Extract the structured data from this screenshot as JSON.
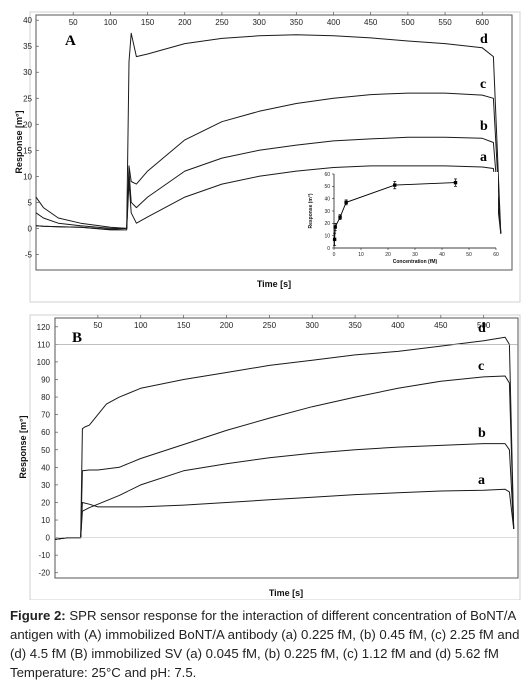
{
  "caption": {
    "lead": "Figure 2:",
    "text": " SPR sensor response for the interaction of different concentration of BoNT/A antigen with (A) immobilized BoNT/A antibody (a) 0.225 fM, (b) 0.45 fM, (c)  2.25 fM and (d)  4.5 fM (B) immobilized SV (a) 0.045 fM, (b) 0.225 fM, (c) 1.12 fM and (d) 5.62 fM  Temperature: 25°C and pH: 7.5."
  },
  "chart_data": [
    {
      "type": "line",
      "panel_label": "A",
      "xlabel": "Time [s]",
      "ylabel": "Response [m°]",
      "xlim": [
        0,
        640
      ],
      "ylim": [
        -8,
        41
      ],
      "xticks": [
        50,
        100,
        150,
        200,
        250,
        300,
        350,
        400,
        450,
        500,
        550,
        600
      ],
      "yticks": [
        -5,
        0,
        5,
        10,
        15,
        20,
        25,
        30,
        35,
        40
      ],
      "series": [
        {
          "name": "a",
          "x": [
            0,
            10,
            30,
            60,
            100,
            122,
            125,
            128,
            135,
            150,
            200,
            250,
            300,
            350,
            400,
            450,
            500,
            550,
            600,
            615,
            625
          ],
          "y": [
            0.5,
            0.4,
            0.3,
            0.2,
            -0.3,
            -0.3,
            9,
            3,
            1,
            2.2,
            6,
            8.5,
            10,
            11,
            11.7,
            12,
            12,
            12,
            11.8,
            11.5,
            -1
          ]
        },
        {
          "name": "b",
          "x": [
            0,
            10,
            30,
            60,
            100,
            122,
            125,
            128,
            135,
            150,
            200,
            250,
            300,
            350,
            400,
            450,
            500,
            550,
            600,
            615,
            625
          ],
          "y": [
            3,
            2,
            1,
            0.5,
            0,
            0,
            11,
            5,
            4,
            6,
            11,
            13.5,
            15,
            16,
            16.8,
            17.2,
            17.5,
            17.5,
            17.3,
            16.5,
            -1
          ]
        },
        {
          "name": "c",
          "x": [
            0,
            10,
            30,
            60,
            100,
            122,
            125,
            128,
            135,
            150,
            200,
            250,
            300,
            350,
            400,
            450,
            500,
            550,
            600,
            615,
            625
          ],
          "y": [
            6,
            4,
            2,
            1,
            0.2,
            0,
            12,
            9,
            8.5,
            11,
            17,
            20.5,
            22.5,
            24,
            25,
            25.7,
            26,
            26,
            25.6,
            25,
            -1
          ]
        },
        {
          "name": "d",
          "x": [
            0,
            10,
            30,
            60,
            100,
            122,
            125,
            128,
            135,
            150,
            200,
            250,
            300,
            350,
            400,
            450,
            500,
            550,
            600,
            615,
            625
          ],
          "y": [
            0.5,
            0.4,
            0.3,
            0.2,
            -0.2,
            0,
            32,
            37.5,
            33,
            33.5,
            35.5,
            36.5,
            37,
            37.2,
            37,
            36.6,
            36,
            35.5,
            34.7,
            33,
            -1
          ]
        }
      ],
      "inset": {
        "type": "scatter",
        "xlabel": "Concentration (fM)",
        "ylabel": "Response (m°)",
        "xlim": [
          0,
          60
        ],
        "ylim": [
          0,
          60
        ],
        "xticks": [
          0,
          10,
          20,
          30,
          40,
          50,
          60
        ],
        "yticks": [
          0,
          10,
          20,
          30,
          40,
          50,
          60
        ],
        "x": [
          0.225,
          0.45,
          2.25,
          4.5,
          22.5,
          45
        ],
        "y": [
          7,
          17,
          25,
          37,
          51,
          53
        ],
        "yerr": [
          5,
          3,
          2,
          2,
          3,
          3
        ]
      }
    },
    {
      "type": "line",
      "panel_label": "B",
      "xlabel": "Time [s]",
      "ylabel": "Response [m°]",
      "xlim": [
        0,
        540
      ],
      "ylim": [
        -23,
        125
      ],
      "xticks": [
        50,
        100,
        150,
        200,
        250,
        300,
        350,
        400,
        450,
        500
      ],
      "yticks": [
        -20,
        -10,
        0,
        10,
        20,
        30,
        40,
        50,
        60,
        70,
        80,
        90,
        100,
        110,
        120
      ],
      "series": [
        {
          "name": "a",
          "x": [
            0,
            15,
            30,
            32,
            40,
            50,
            100,
            150,
            200,
            250,
            300,
            350,
            400,
            450,
            500,
            525,
            530,
            535
          ],
          "y": [
            -1,
            0,
            0,
            20,
            19,
            17.5,
            17.5,
            18.5,
            20,
            21.5,
            23,
            24.5,
            25.5,
            26.5,
            27,
            27.5,
            26,
            5
          ]
        },
        {
          "name": "b",
          "x": [
            0,
            15,
            30,
            32,
            40,
            50,
            75,
            100,
            150,
            200,
            250,
            300,
            350,
            400,
            450,
            500,
            525,
            530,
            535
          ],
          "y": [
            -1,
            0,
            0,
            15,
            17,
            19,
            24,
            30,
            38,
            42,
            45.5,
            48,
            50,
            51.5,
            52.5,
            53.5,
            53.5,
            50,
            5
          ]
        },
        {
          "name": "c",
          "x": [
            0,
            15,
            30,
            32,
            40,
            50,
            75,
            100,
            150,
            200,
            250,
            300,
            350,
            400,
            450,
            500,
            525,
            530,
            535
          ],
          "y": [
            -1,
            0,
            0,
            38,
            38.5,
            38.5,
            40,
            45,
            53,
            61,
            68,
            74.5,
            80,
            85,
            89,
            91.5,
            92,
            88,
            5
          ]
        },
        {
          "name": "d",
          "x": [
            0,
            15,
            30,
            32,
            35,
            40,
            50,
            60,
            75,
            100,
            150,
            200,
            250,
            300,
            350,
            400,
            450,
            500,
            525,
            530,
            535
          ],
          "y": [
            -1,
            0,
            0,
            62,
            63,
            64,
            70,
            76,
            80,
            85,
            90,
            94,
            98,
            101,
            104,
            106,
            109,
            112,
            114,
            110,
            5
          ]
        }
      ]
    }
  ]
}
